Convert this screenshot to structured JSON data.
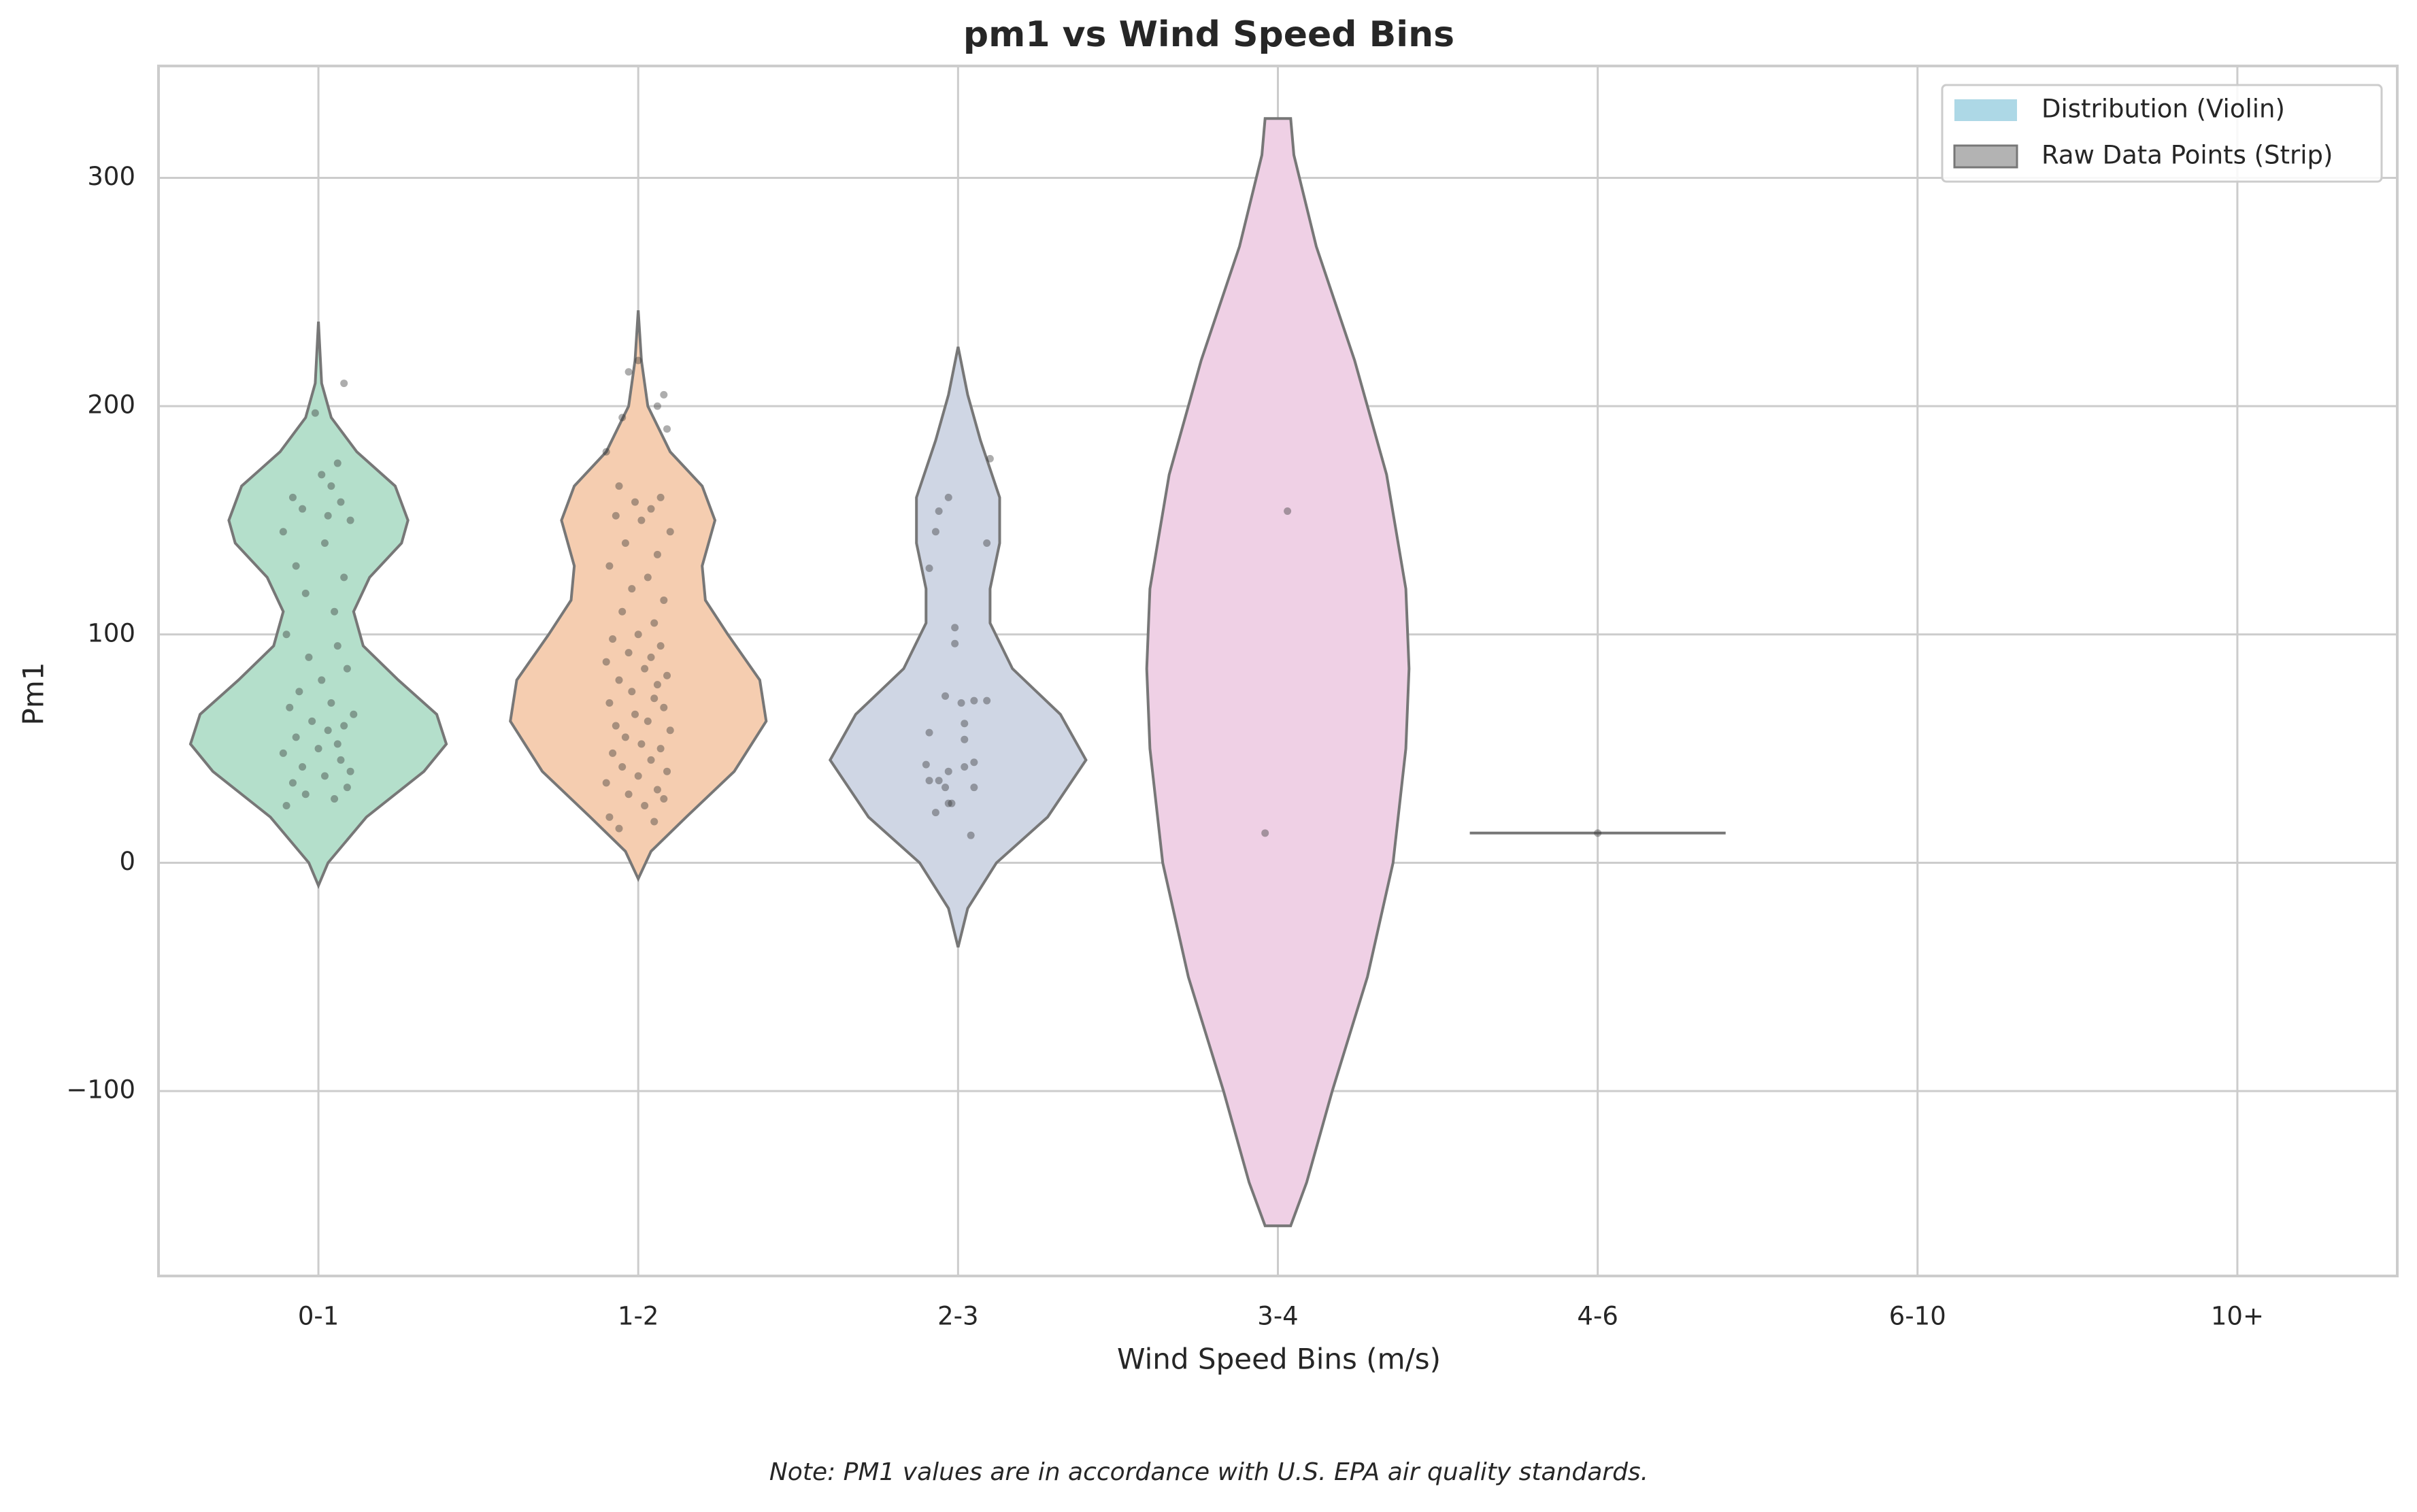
{
  "chart_data": {
    "type": "violin",
    "title": "pm1 vs Wind Speed Bins",
    "xlabel": "Wind Speed Bins (m/s)",
    "ylabel": "Pm1",
    "note": "Note: PM1 values are in accordance with U.S. EPA air quality standards.",
    "categories": [
      "0-1",
      "1-2",
      "2-3",
      "3-4",
      "4-6",
      "6-10",
      "10+"
    ],
    "ylim": [
      -181,
      349
    ],
    "yticks": [
      {
        "value": -100,
        "label": "−100"
      },
      0,
      100,
      200,
      300
    ],
    "grid": true,
    "legend_position": "upper right",
    "legend": [
      {
        "name": "Distribution (Violin)",
        "color": "#add8e6"
      },
      {
        "name": "Raw Data Points (Strip)",
        "color": "#b3b3b3"
      }
    ],
    "point_color": "#333333",
    "violins": [
      {
        "category": 0,
        "color": "#b4dfcb",
        "y": [
          -10,
          0,
          20,
          40,
          52,
          65,
          80,
          95,
          110,
          125,
          140,
          150,
          165,
          180,
          195,
          210,
          237
        ],
        "half_width": [
          0,
          0.03,
          0.15,
          0.33,
          0.4,
          0.37,
          0.25,
          0.14,
          0.11,
          0.16,
          0.26,
          0.28,
          0.24,
          0.12,
          0.04,
          0.01,
          0
        ]
      },
      {
        "category": 1,
        "color": "#f5cdb0",
        "y": [
          -7,
          5,
          20,
          40,
          62,
          80,
          100,
          115,
          130,
          150,
          165,
          180,
          200,
          220,
          242
        ],
        "half_width": [
          0,
          0.04,
          0.15,
          0.3,
          0.4,
          0.38,
          0.28,
          0.21,
          0.2,
          0.24,
          0.2,
          0.1,
          0.03,
          0.01,
          0
        ]
      },
      {
        "category": 2,
        "color": "#cfd6e4",
        "y": [
          -37,
          -20,
          0,
          20,
          45,
          65,
          85,
          105,
          120,
          140,
          160,
          185,
          205,
          226
        ],
        "half_width": [
          0,
          0.03,
          0.12,
          0.28,
          0.4,
          0.32,
          0.17,
          0.1,
          0.1,
          0.13,
          0.13,
          0.07,
          0.03,
          0
        ]
      },
      {
        "category": 3,
        "color": "#efd0e5",
        "y": [
          -159,
          -140,
          -100,
          -50,
          0,
          50,
          85,
          120,
          170,
          220,
          270,
          310,
          326
        ],
        "half_width": [
          0.04,
          0.09,
          0.17,
          0.28,
          0.36,
          0.4,
          0.41,
          0.4,
          0.34,
          0.24,
          0.12,
          0.05,
          0.04
        ]
      },
      {
        "category": 4,
        "color": "#cccccc",
        "y": [
          13
        ],
        "half_width": [
          0.4
        ]
      }
    ],
    "strips": [
      {
        "category": 0,
        "jitter": [
          -0.1,
          0.05,
          -0.04,
          0.09,
          -0.08,
          0.02,
          0.1,
          -0.05,
          0.07,
          -0.11,
          0.0,
          0.06,
          -0.07,
          0.03,
          0.08,
          -0.02,
          0.11,
          -0.09,
          0.04,
          -0.06,
          0.01,
          0.09,
          -0.03,
          0.06,
          -0.1,
          0.05,
          -0.04,
          0.08,
          -0.07,
          0.02,
          -0.11,
          0.1,
          0.03,
          -0.05,
          0.07,
          -0.08,
          0.04,
          0.01,
          0.06,
          -0.01,
          0.08
        ],
        "values": [
          25,
          28,
          30,
          33,
          35,
          38,
          40,
          42,
          45,
          48,
          50,
          52,
          55,
          58,
          60,
          62,
          65,
          68,
          70,
          75,
          80,
          85,
          90,
          95,
          100,
          110,
          118,
          125,
          130,
          140,
          145,
          150,
          152,
          155,
          158,
          160,
          165,
          170,
          175,
          197,
          210
        ]
      },
      {
        "category": 1,
        "jitter": [
          -0.06,
          0.05,
          -0.09,
          0.02,
          0.08,
          -0.03,
          0.06,
          -0.1,
          0.0,
          0.09,
          -0.05,
          0.04,
          -0.08,
          0.07,
          0.01,
          -0.04,
          0.1,
          -0.07,
          0.03,
          -0.01,
          0.08,
          -0.09,
          0.05,
          -0.02,
          0.06,
          -0.06,
          0.09,
          0.02,
          -0.1,
          0.04,
          -0.03,
          0.07,
          -0.08,
          0.0,
          0.05,
          -0.05,
          0.08,
          -0.02,
          0.03,
          -0.09,
          0.06,
          -0.04,
          0.1,
          0.01,
          -0.07,
          0.04,
          -0.01,
          0.07,
          -0.06,
          -0.1,
          0.09,
          -0.05,
          0.06,
          0.08,
          -0.03,
          0.0
        ],
        "values": [
          15,
          18,
          20,
          25,
          28,
          30,
          32,
          35,
          38,
          40,
          42,
          45,
          48,
          50,
          52,
          55,
          58,
          60,
          62,
          65,
          68,
          70,
          72,
          75,
          78,
          80,
          82,
          85,
          88,
          90,
          92,
          95,
          98,
          100,
          105,
          110,
          115,
          120,
          125,
          130,
          135,
          140,
          145,
          150,
          152,
          155,
          158,
          160,
          165,
          180,
          190,
          195,
          200,
          205,
          215,
          220
        ]
      },
      {
        "category": 2,
        "jitter": [
          -0.03,
          -0.06,
          -0.07,
          0.09,
          -0.09,
          -0.01,
          -0.01,
          -0.04,
          0.01,
          0.05,
          0.09,
          0.02,
          -0.09,
          0.02,
          -0.1,
          0.05,
          0.02,
          -0.03,
          -0.09,
          -0.06,
          -0.04,
          0.05,
          -0.03,
          -0.02,
          -0.07,
          0.04,
          0.1
        ],
        "values": [
          160,
          154,
          145,
          140,
          129,
          103,
          96,
          73,
          70,
          71,
          71,
          61,
          57,
          54,
          43,
          44,
          42,
          40,
          36,
          36,
          33,
          33,
          26,
          26,
          22,
          12,
          177
        ]
      },
      {
        "category": 3,
        "jitter": [
          -0.04,
          0.03
        ],
        "values": [
          13,
          154
        ]
      },
      {
        "category": 4,
        "jitter": [
          0
        ],
        "values": [
          13
        ]
      }
    ]
  }
}
